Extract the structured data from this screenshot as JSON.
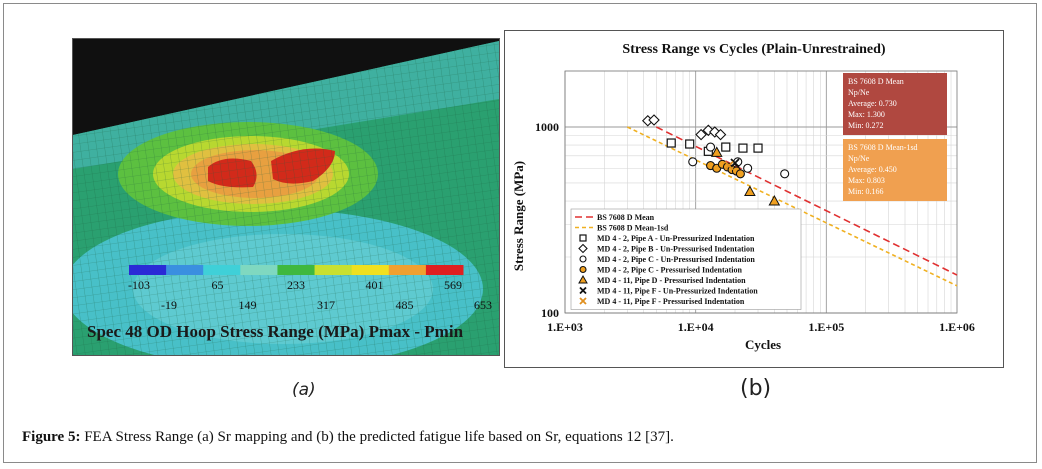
{
  "figure": {
    "panel_a_label": "(a)",
    "panel_b_label": "(b)",
    "caption_label": "Figure 5:",
    "caption_text": " FEA Stress Range (a) Sr mapping and (b) the predicted fatigue life based on Sr, equations 12 [37]."
  },
  "fea": {
    "title": "Spec 48 OD Hoop Stress Range (MPa) Pmax - Pmin",
    "legend_colors": [
      "#2a2ad6",
      "#3a8fe0",
      "#3fd0d8",
      "#7fd8c0",
      "#3fb83f",
      "#c8e030",
      "#f0e020",
      "#f0a030",
      "#e02020"
    ],
    "legend_values_top": [
      "-103",
      "65",
      "233",
      "401",
      "569"
    ],
    "legend_values_bottom": [
      "-19",
      "149",
      "317",
      "485",
      "653"
    ]
  },
  "chart_data": {
    "type": "scatter",
    "title": "Stress Range vs Cycles (Plain-Unrestrained)",
    "xlabel": "Cycles",
    "ylabel": "Stress Range (MPa)",
    "xscale": "log",
    "yscale": "log",
    "xlim": [
      1000,
      1000000
    ],
    "ylim": [
      100,
      2000
    ],
    "x_tick_labels": [
      "1.E+03",
      "1.E+04",
      "1.E+05",
      "1.E+06"
    ],
    "x_ticks": [
      1000,
      10000,
      100000,
      1000000
    ],
    "y_tick_labels": [
      "100",
      "1000"
    ],
    "y_ticks": [
      100,
      1000
    ],
    "lines": [
      {
        "name": "BS 7608 D Mean",
        "color": "#e03030",
        "dash": "7,4",
        "x": [
          5000,
          1000000
        ],
        "y": [
          1000,
          160
        ]
      },
      {
        "name": "BS 7608 D Mean-1sd",
        "color": "#f0b020",
        "dash": "4,3",
        "x": [
          3000,
          1000000
        ],
        "y": [
          1000,
          140
        ]
      }
    ],
    "series": [
      {
        "name": "MD 4 - 2, Pipe A - Un-Pressurized Indentation",
        "marker": "square",
        "color": "#111111",
        "fill": "none",
        "x": [
          6500,
          9000,
          12500,
          17000,
          23000,
          30000
        ],
        "y": [
          820,
          810,
          740,
          780,
          770,
          770
        ]
      },
      {
        "name": "MD 4 - 2, Pipe B - Un-Pressurised Indentation",
        "marker": "diamond",
        "color": "#111111",
        "fill": "none",
        "x": [
          4300,
          4800,
          11000,
          12500,
          14000,
          15500
        ],
        "y": [
          1080,
          1090,
          910,
          960,
          940,
          910
        ]
      },
      {
        "name": "MD 4 - 2, Pipe C - Un-Pressurised Indentation",
        "marker": "circle",
        "color": "#111111",
        "fill": "none",
        "x": [
          9500,
          13000,
          21000,
          25000,
          48000
        ],
        "y": [
          650,
          780,
          650,
          600,
          560
        ]
      },
      {
        "name": "MD 4 - 2, Pipe C - Pressurised Indentation",
        "marker": "circle",
        "color": "#111111",
        "fill": "#f0a020",
        "x": [
          13000,
          14500,
          16000,
          17500,
          19000,
          20500,
          22000
        ],
        "y": [
          620,
          600,
          630,
          610,
          590,
          580,
          560
        ]
      },
      {
        "name": "MD 4 - 11, Pipe D - Pressurised Indentation",
        "marker": "triangle",
        "color": "#111111",
        "fill": "#f0a020",
        "x": [
          14500,
          26000,
          40000
        ],
        "y": [
          730,
          450,
          400
        ]
      },
      {
        "name": "MD 4 - 11, Pipe F - Un-Pressurized Indentation",
        "marker": "x",
        "color": "#111111",
        "fill": "none",
        "x": [
          20000
        ],
        "y": [
          640
        ]
      },
      {
        "name": "MD 4 - 11, Pipe F - Pressurised Indentation",
        "marker": "x",
        "color": "#e09020",
        "fill": "none",
        "x": [
          18000
        ],
        "y": [
          620
        ]
      }
    ],
    "annotations": [
      {
        "title": "BS 7608 D Mean",
        "lines": [
          "Np/Ne",
          "Average: 0.730",
          "Max: 1.300",
          "Min: 0.272"
        ],
        "bg": "#b04840"
      },
      {
        "title": "BS 7608 D Mean-1sd",
        "lines": [
          "Np/Ne",
          "Average: 0.450",
          "Max: 0.803",
          "Min: 0.166"
        ],
        "bg": "#f0a050"
      }
    ],
    "legend_position": "lower-left"
  }
}
